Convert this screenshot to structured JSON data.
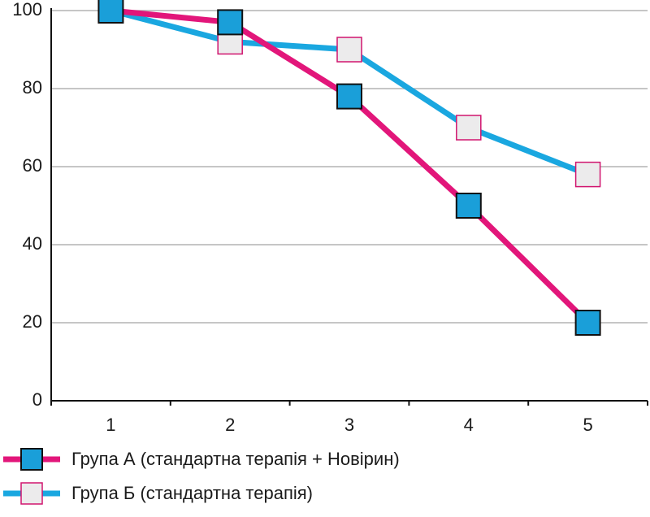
{
  "chart_data": {
    "type": "line",
    "categories": [
      "1",
      "2",
      "3",
      "4",
      "5"
    ],
    "ylim": [
      0,
      100
    ],
    "yticks": [
      "0",
      "20",
      "40",
      "60",
      "80",
      "100"
    ],
    "grid": "horizontal",
    "legend_position": "bottom-left",
    "series": [
      {
        "name": "Група А (стандартна терапія + Новірин)",
        "values": [
          100,
          97,
          78,
          50,
          20
        ],
        "line_color": "#e2167a",
        "marker_color": "#1a9fd9",
        "marker": "square"
      },
      {
        "name": "Група Б (стандартна терапія)",
        "values": [
          100,
          92,
          90,
          70,
          58
        ],
        "line_color": "#1aa7e0",
        "marker_color": "#ecebec",
        "marker_stroke": "#d1156f",
        "marker": "square"
      }
    ]
  }
}
